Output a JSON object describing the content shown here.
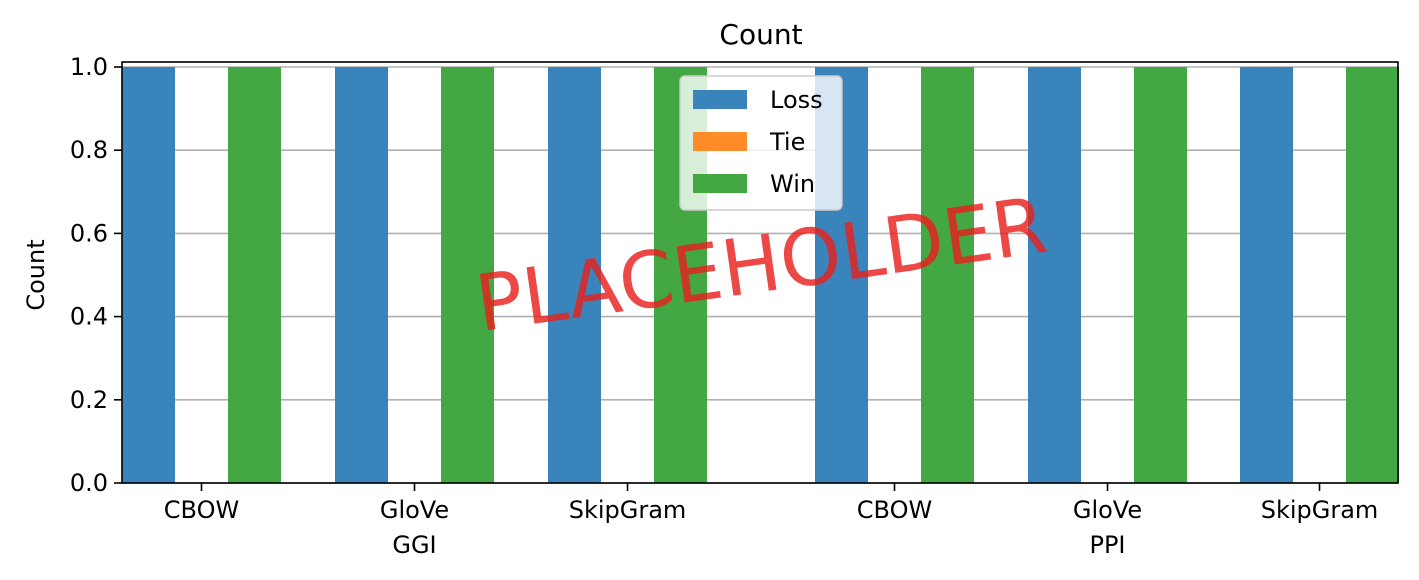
{
  "chart_data": {
    "type": "bar",
    "title": "Count",
    "xlabel": "",
    "ylabel": "Count",
    "ylim": [
      0,
      1.0
    ],
    "yticks": [
      "0.0",
      "0.2",
      "0.4",
      "0.6",
      "0.8",
      "1.0"
    ],
    "grid": "horizontal",
    "legend_position": "top-center",
    "categories": [
      "CBOW",
      "GloVe",
      "SkipGram",
      "CBOW",
      "GloVe",
      "SkipGram"
    ],
    "groups": [
      {
        "label": "GGI",
        "categories": [
          "CBOW",
          "GloVe",
          "SkipGram"
        ]
      },
      {
        "label": "PPI",
        "categories": [
          "CBOW",
          "GloVe",
          "SkipGram"
        ]
      }
    ],
    "series": [
      {
        "name": "Loss",
        "color": "#3a84bc",
        "values": [
          1,
          1,
          1,
          1,
          1,
          1
        ]
      },
      {
        "name": "Tie",
        "color": "#ff8c28",
        "values": [
          0,
          0,
          0,
          0,
          0,
          0
        ]
      },
      {
        "name": "Win",
        "color": "#43a843",
        "values": [
          1,
          1,
          1,
          1,
          1,
          1
        ]
      }
    ]
  },
  "watermark": "PLACEHOLDER"
}
